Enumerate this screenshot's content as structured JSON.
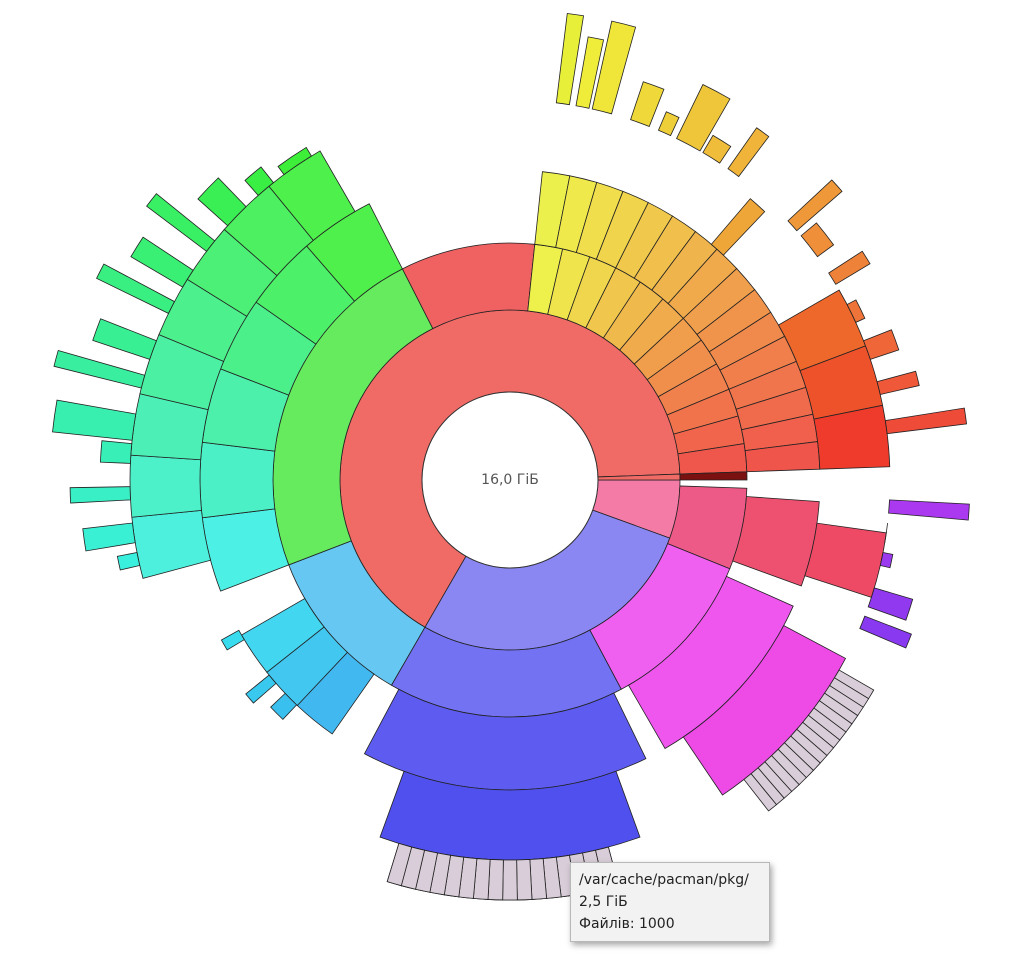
{
  "center_label": "16,0 ГіБ",
  "tooltip": {
    "path": "/var/cache/pacman/pkg/",
    "size": "2,5 ГіБ",
    "files": "Файлів: 1000"
  }
}
